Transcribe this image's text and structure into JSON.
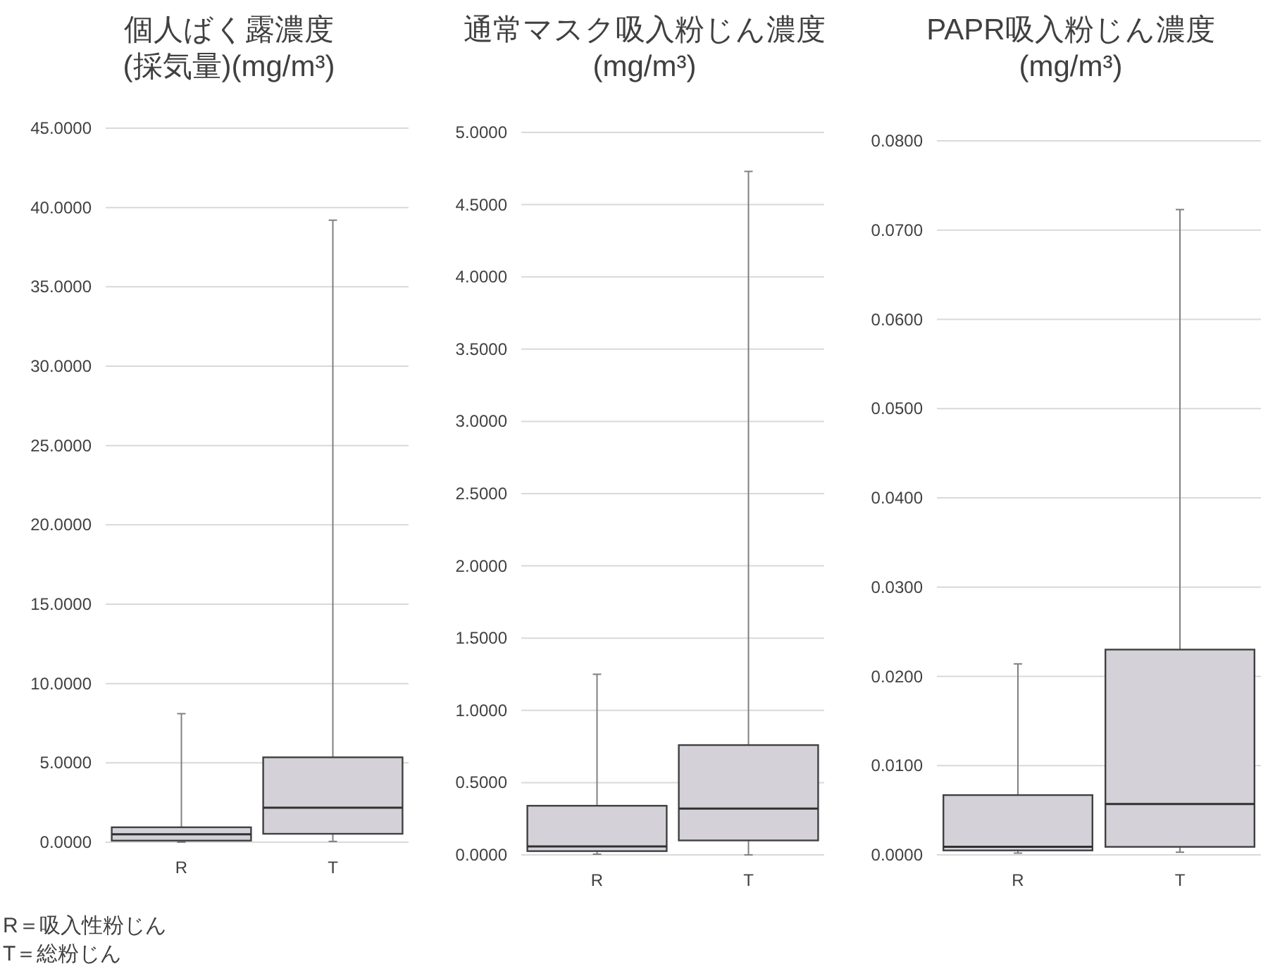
{
  "chart_data": [
    {
      "type": "box",
      "title": "個人ばく露濃度\n(採気量)(mg/m³)",
      "categories": [
        "R",
        "T"
      ],
      "grid": "y",
      "color": "#d4d2d8",
      "boxes": [
        {
          "low": 0.0,
          "q1": 0.1,
          "median": 0.5,
          "q3": 0.94,
          "high": 8.1
        },
        {
          "low": 0.05,
          "q1": 0.53,
          "median": 2.18,
          "q3": 5.35,
          "high": 39.2
        }
      ],
      "ylim": [
        0,
        45
      ],
      "yticks": [
        {
          "value": 0,
          "label": "0.0000"
        },
        {
          "value": 5,
          "label": "5.0000"
        },
        {
          "value": 10,
          "label": "10.0000"
        },
        {
          "value": 15,
          "label": "15.0000"
        },
        {
          "value": 20,
          "label": "20.0000"
        },
        {
          "value": 25,
          "label": "25.0000"
        },
        {
          "value": 30,
          "label": "30.0000"
        },
        {
          "value": 35,
          "label": "35.0000"
        },
        {
          "value": 40,
          "label": "40.0000"
        },
        {
          "value": 45,
          "label": "45.0000"
        }
      ],
      "annotations": [
        "R＝吸入性粉じん",
        "T＝総粉じん"
      ]
    },
    {
      "type": "box",
      "title": "通常マスク吸入粉じん濃度\n(mg/m³)",
      "categories": [
        "R",
        "T"
      ],
      "grid": "y",
      "color": "#d4d2d8",
      "boxes": [
        {
          "low": 0.005,
          "q1": 0.026,
          "median": 0.058,
          "q3": 0.34,
          "high": 1.25
        },
        {
          "low": 0.0,
          "q1": 0.1,
          "median": 0.32,
          "q3": 0.76,
          "high": 4.73
        }
      ],
      "ylim": [
        0,
        5
      ],
      "yticks": [
        {
          "value": 0,
          "label": "0.0000"
        },
        {
          "value": 0.5,
          "label": "0.5000"
        },
        {
          "value": 1,
          "label": "1.0000"
        },
        {
          "value": 1.5,
          "label": "1.5000"
        },
        {
          "value": 2,
          "label": "2.0000"
        },
        {
          "value": 2.5,
          "label": "2.5000"
        },
        {
          "value": 3,
          "label": "3.0000"
        },
        {
          "value": 3.5,
          "label": "3.5000"
        },
        {
          "value": 4,
          "label": "4.0000"
        },
        {
          "value": 4.5,
          "label": "4.5000"
        },
        {
          "value": 5,
          "label": "5.0000"
        }
      ]
    },
    {
      "type": "box",
      "title": "PAPR吸入粉じん濃度\n(mg/m³)",
      "categories": [
        "R",
        "T"
      ],
      "grid": "y",
      "color": "#d4d2d8",
      "boxes": [
        {
          "low": 0.0002,
          "q1": 0.0005,
          "median": 0.0009,
          "q3": 0.0067,
          "high": 0.0214
        },
        {
          "low": 0.0003,
          "q1": 0.0009,
          "median": 0.0057,
          "q3": 0.023,
          "high": 0.0723
        }
      ],
      "ylim": [
        0,
        0.08
      ],
      "yticks": [
        {
          "value": 0,
          "label": "0.0000"
        },
        {
          "value": 0.01,
          "label": "0.0100"
        },
        {
          "value": 0.02,
          "label": "0.0200"
        },
        {
          "value": 0.03,
          "label": "0.0300"
        },
        {
          "value": 0.04,
          "label": "0.0400"
        },
        {
          "value": 0.05,
          "label": "0.0500"
        },
        {
          "value": 0.06,
          "label": "0.0600"
        },
        {
          "value": 0.07,
          "label": "0.0700"
        },
        {
          "value": 0.08,
          "label": "0.0800"
        }
      ]
    }
  ]
}
